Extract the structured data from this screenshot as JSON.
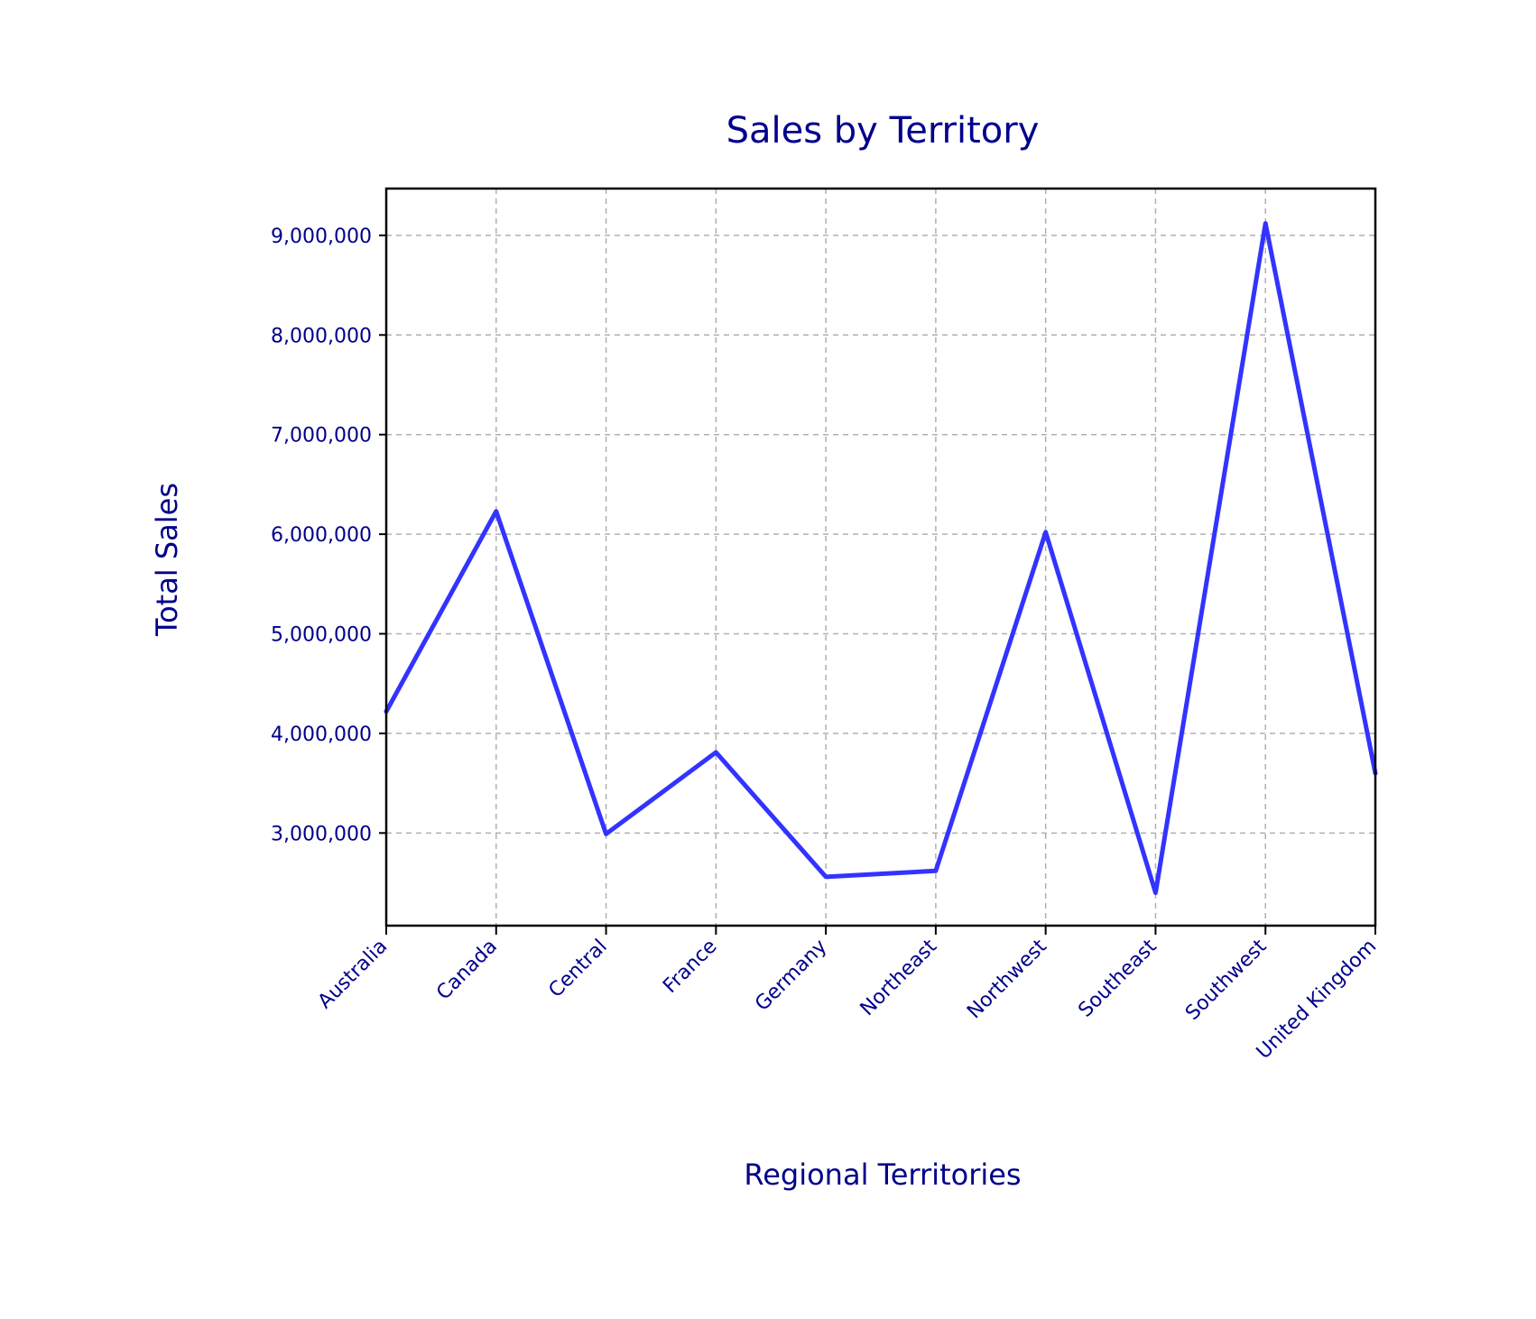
{
  "chart_data": {
    "type": "line",
    "title": "Sales by Territory",
    "xlabel": "Regional Territories",
    "ylabel": "Total Sales",
    "categories": [
      "Australia",
      "Canada",
      "Central",
      "France",
      "Germany",
      "Northeast",
      "Northwest",
      "Southeast",
      "Southwest",
      "United Kingdom"
    ],
    "series": [
      {
        "values": [
          4220000,
          6230000,
          2990000,
          3810000,
          2560000,
          2620000,
          6020000,
          2400000,
          9120000,
          3600000
        ]
      }
    ],
    "ylim": [
      2070000,
      9470000
    ],
    "yticks": [
      3000000,
      4000000,
      5000000,
      6000000,
      7000000,
      8000000,
      9000000
    ],
    "ytick_labels": [
      "3,000,000",
      "4,000,000",
      "5,000,000",
      "6,000,000",
      "7,000,000",
      "8,000,000",
      "9,000,000"
    ],
    "grid": true,
    "colors": {
      "line": "#3333ff",
      "text": "#00008b",
      "grid": "#b0b0b0",
      "axes": "#000000"
    }
  }
}
